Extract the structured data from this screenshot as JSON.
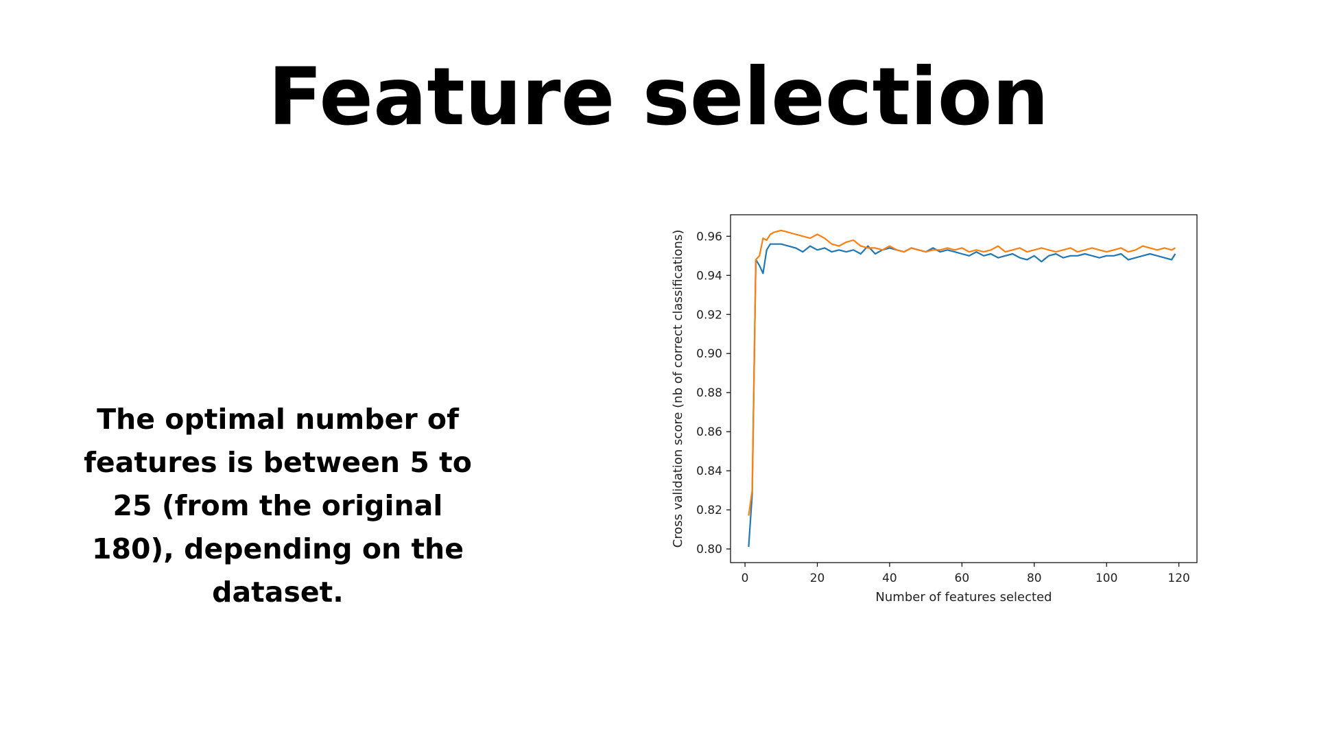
{
  "slide": {
    "title": "Feature selection",
    "body": "The optimal number of features is between 5 to 25 (from the original 180), depending on the dataset."
  },
  "chart_data": {
    "type": "line",
    "xlabel": "Number of features selected",
    "ylabel": "Cross validation score (nb of correct classifications)",
    "xlim": [
      -4,
      125
    ],
    "ylim": [
      0.793,
      0.971
    ],
    "xticks": [
      0,
      20,
      40,
      60,
      80,
      100,
      120
    ],
    "yticks": [
      0.8,
      0.82,
      0.84,
      0.86,
      0.88,
      0.9,
      0.92,
      0.94,
      0.96
    ],
    "ytick_labels": [
      "0.80",
      "0.82",
      "0.84",
      "0.86",
      "0.88",
      "0.90",
      "0.92",
      "0.94",
      "0.96"
    ],
    "grid": false,
    "legend": "none",
    "series": [
      {
        "color": "#1f77b4",
        "x": [
          1,
          2,
          3,
          4,
          5,
          6,
          7,
          8,
          10,
          12,
          14,
          16,
          18,
          20,
          22,
          24,
          26,
          28,
          30,
          32,
          34,
          36,
          38,
          40,
          42,
          44,
          46,
          48,
          50,
          52,
          54,
          56,
          58,
          60,
          62,
          64,
          66,
          68,
          70,
          72,
          74,
          76,
          78,
          80,
          82,
          84,
          86,
          88,
          90,
          92,
          94,
          96,
          98,
          100,
          102,
          104,
          106,
          108,
          110,
          112,
          114,
          116,
          118,
          119
        ],
        "values": [
          0.801,
          0.828,
          0.948,
          0.945,
          0.941,
          0.953,
          0.956,
          0.956,
          0.956,
          0.955,
          0.954,
          0.952,
          0.955,
          0.953,
          0.954,
          0.952,
          0.953,
          0.952,
          0.953,
          0.951,
          0.955,
          0.951,
          0.953,
          0.954,
          0.953,
          0.952,
          0.954,
          0.953,
          0.952,
          0.954,
          0.952,
          0.953,
          0.952,
          0.951,
          0.95,
          0.952,
          0.95,
          0.951,
          0.949,
          0.95,
          0.951,
          0.949,
          0.948,
          0.95,
          0.947,
          0.95,
          0.951,
          0.949,
          0.95,
          0.95,
          0.951,
          0.95,
          0.949,
          0.95,
          0.95,
          0.951,
          0.948,
          0.949,
          0.95,
          0.951,
          0.95,
          0.949,
          0.948,
          0.951
        ]
      },
      {
        "color": "#ff7f0e",
        "x": [
          1,
          2,
          3,
          4,
          5,
          6,
          7,
          8,
          10,
          12,
          14,
          16,
          18,
          20,
          22,
          24,
          26,
          28,
          30,
          32,
          34,
          36,
          38,
          40,
          42,
          44,
          46,
          48,
          50,
          52,
          54,
          56,
          58,
          60,
          62,
          64,
          66,
          68,
          70,
          72,
          74,
          76,
          78,
          80,
          82,
          84,
          86,
          88,
          90,
          92,
          94,
          96,
          98,
          100,
          102,
          104,
          106,
          108,
          110,
          112,
          114,
          116,
          118,
          119
        ],
        "values": [
          0.817,
          0.83,
          0.948,
          0.95,
          0.959,
          0.958,
          0.961,
          0.962,
          0.963,
          0.962,
          0.961,
          0.96,
          0.959,
          0.961,
          0.959,
          0.956,
          0.955,
          0.957,
          0.958,
          0.955,
          0.954,
          0.954,
          0.953,
          0.955,
          0.953,
          0.952,
          0.954,
          0.953,
          0.952,
          0.953,
          0.953,
          0.954,
          0.953,
          0.954,
          0.952,
          0.953,
          0.952,
          0.953,
          0.955,
          0.952,
          0.953,
          0.954,
          0.952,
          0.953,
          0.954,
          0.953,
          0.952,
          0.953,
          0.954,
          0.952,
          0.953,
          0.954,
          0.953,
          0.952,
          0.953,
          0.954,
          0.952,
          0.953,
          0.955,
          0.954,
          0.953,
          0.954,
          0.953,
          0.954
        ]
      }
    ]
  }
}
